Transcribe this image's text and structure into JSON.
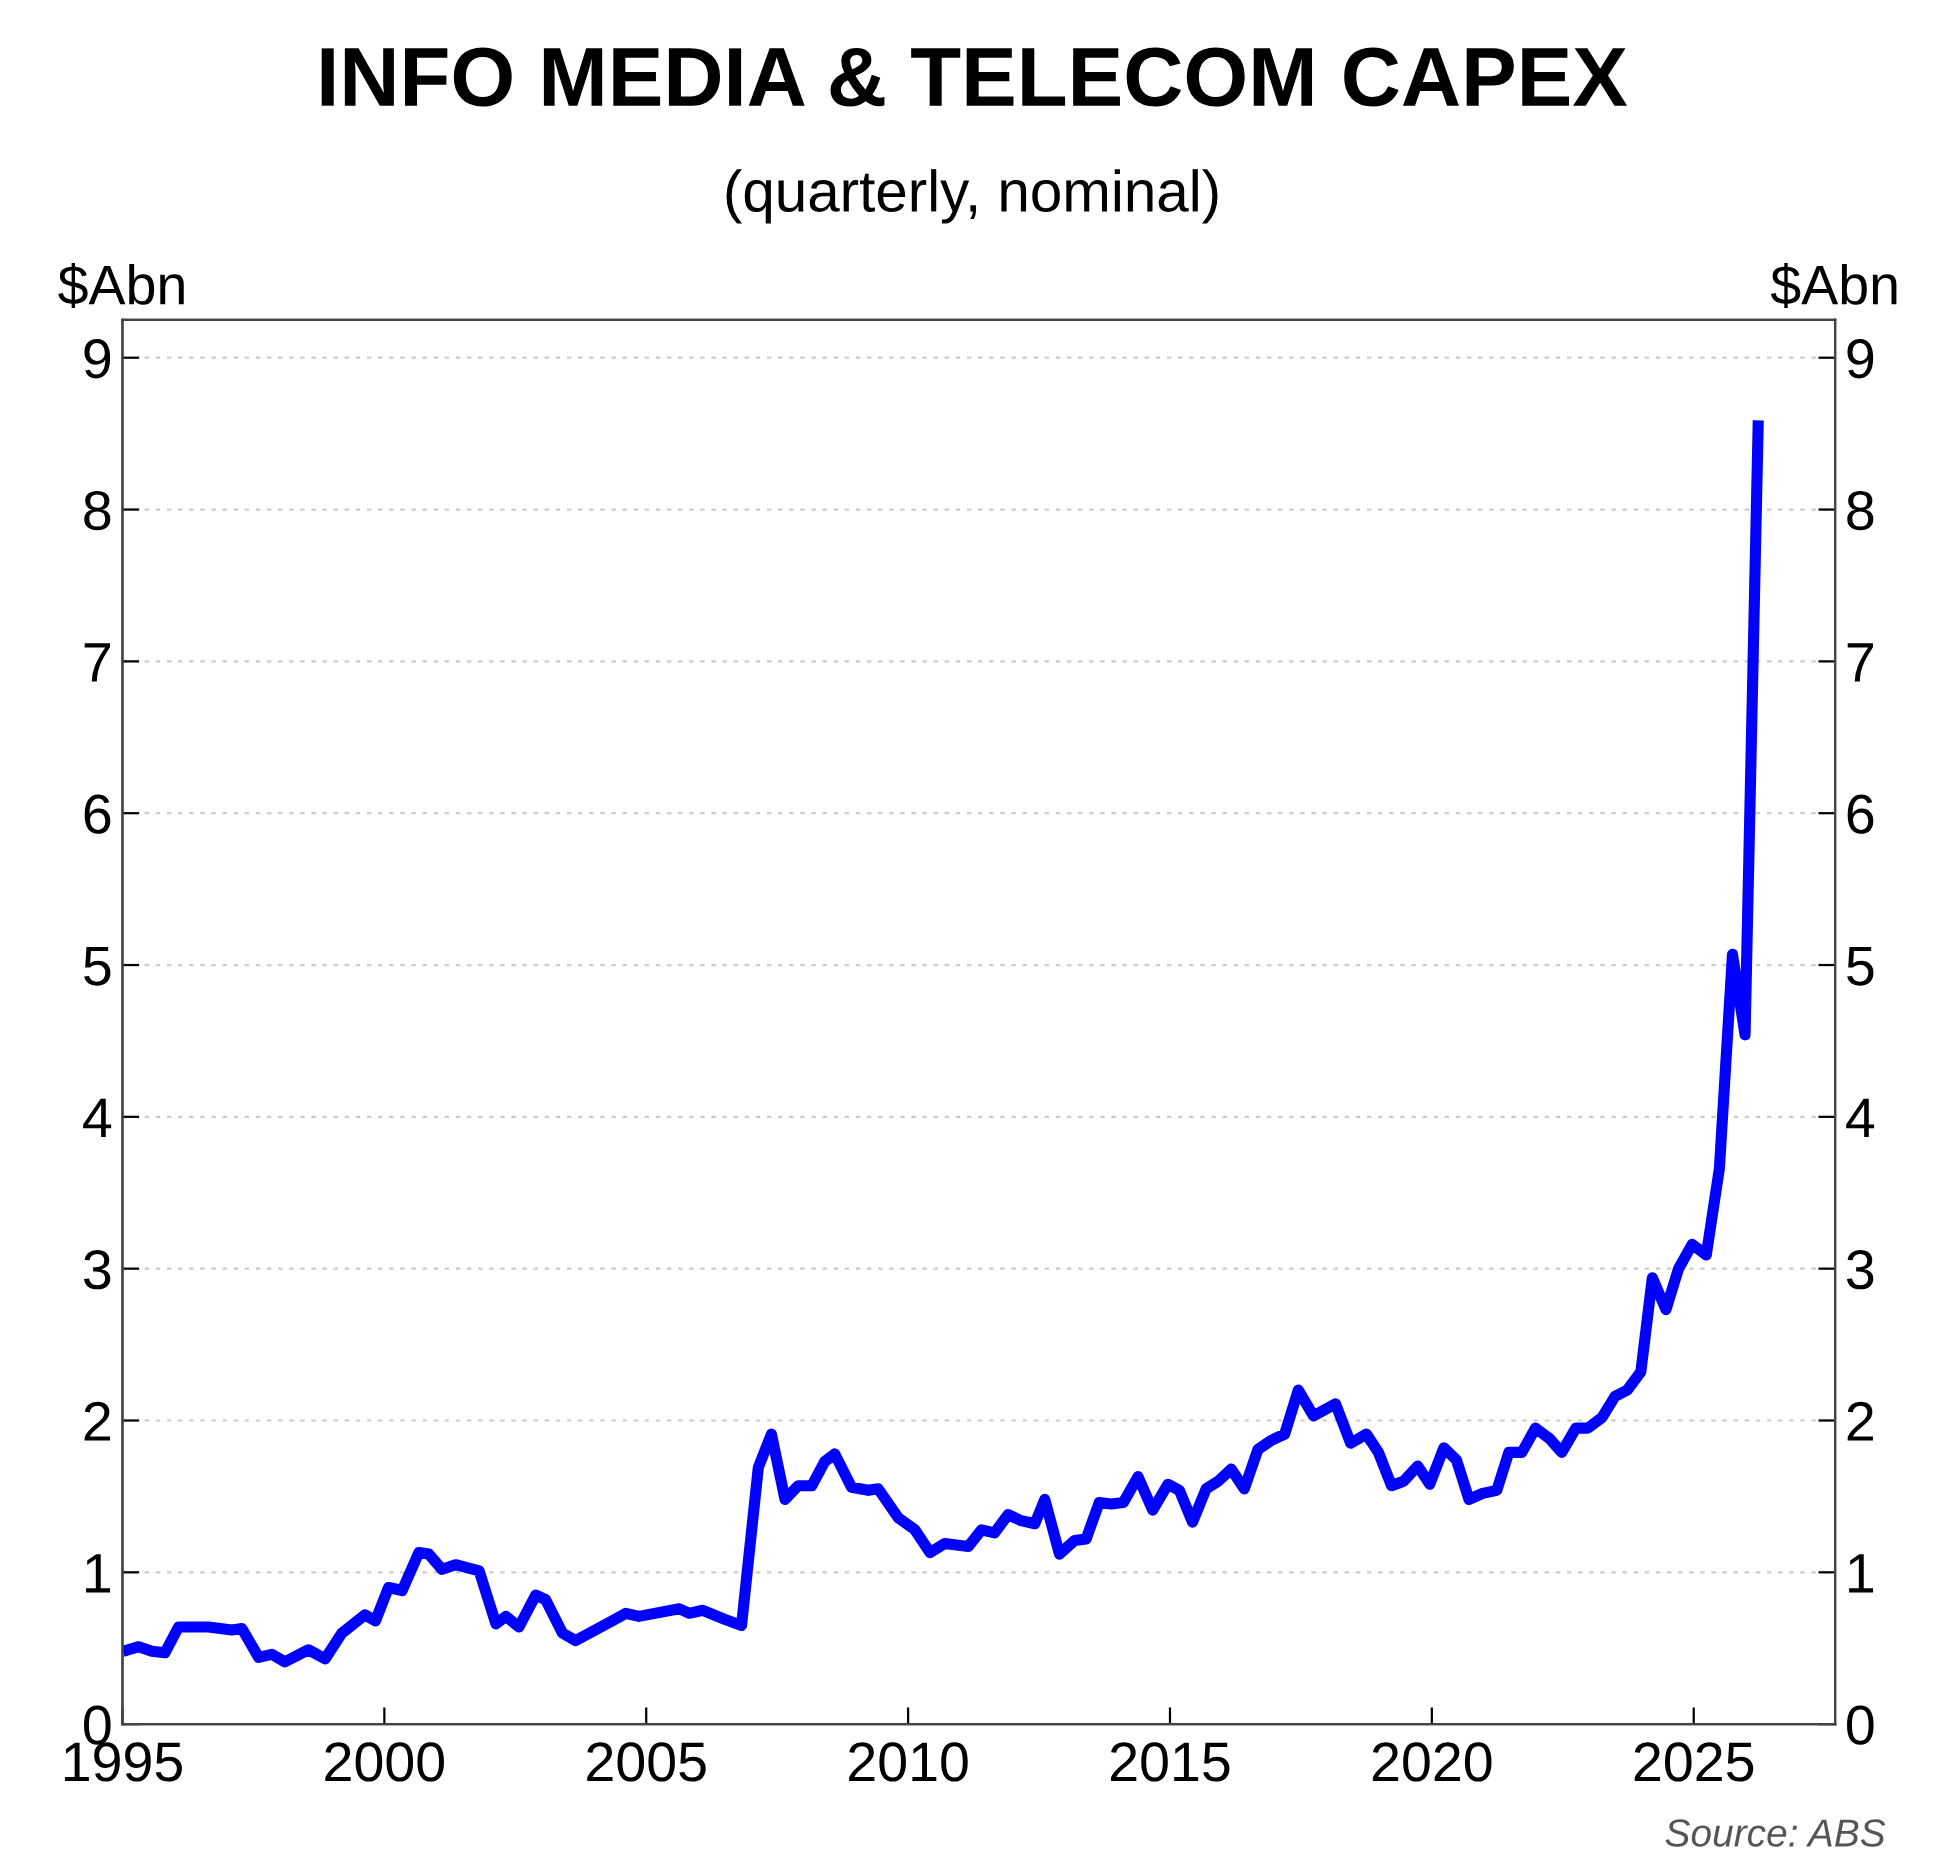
{
  "chart_data": {
    "type": "line",
    "title": "INFO MEDIA & TELECOM CAPEX",
    "subtitle": "(quarterly, nominal)",
    "ylabel": "$Abn",
    "y2label": "$Abn",
    "annotations": [
      "Source: ABS"
    ],
    "x": [
      1995.11,
      1995.31,
      1995.56,
      1995.81,
      1996.07,
      1996.32,
      1996.64,
      1997.09,
      1997.28,
      1997.6,
      1997.85,
      1998.1,
      1998.55,
      1998.87,
      1999.19,
      1999.63,
      1999.83,
      2000.08,
      2000.34,
      2000.66,
      2000.85,
      2001.1,
      2001.36,
      2001.81,
      2002.13,
      2002.32,
      2002.57,
      2002.89,
      2003.08,
      2003.4,
      2003.65,
      2004.35,
      2004.61,
      2004.86,
      2005.63,
      2005.82,
      2006.08,
      2006.5,
      2006.82,
      2007.14,
      2007.39,
      2007.65,
      2007.9,
      2008.16,
      2008.41,
      2008.6,
      2008.92,
      2009.24,
      2009.43,
      2009.81,
      2010.13,
      2010.42,
      2010.7,
      2011.15,
      2011.4,
      2011.65,
      2011.91,
      2012.16,
      2012.42,
      2012.61,
      2012.89,
      2013.18,
      2013.4,
      2013.65,
      2013.88,
      2014.11,
      2014.39,
      2014.67,
      2014.96,
      2015.18,
      2015.43,
      2015.69,
      2015.92,
      2016.17,
      2016.42,
      2016.68,
      2016.94,
      2017.19,
      2017.45,
      2017.74,
      2018.16,
      2018.45,
      2018.75,
      2018.98,
      2019.23,
      2019.46,
      2019.73,
      2019.96,
      2020.23,
      2020.47,
      2020.71,
      2020.97,
      2021.24,
      2021.47,
      2021.72,
      2021.98,
      2022.25,
      2022.48,
      2022.75,
      2022.98,
      2023.25,
      2023.5,
      2023.73,
      2023.99,
      2024.21,
      2024.47,
      2024.71,
      2024.97,
      2025.24,
      2025.49,
      2025.74,
      2025.98,
      2026.23
    ],
    "series": [
      {
        "color": "#0000ff",
        "values": [
          0.49,
          0.51,
          0.48,
          0.47,
          0.64,
          0.64,
          0.64,
          0.62,
          0.63,
          0.44,
          0.46,
          0.41,
          0.49,
          0.43,
          0.6,
          0.72,
          0.68,
          0.9,
          0.88,
          1.13,
          1.12,
          1.02,
          1.05,
          1.01,
          0.66,
          0.71,
          0.64,
          0.85,
          0.82,
          0.6,
          0.55,
          0.68,
          0.73,
          0.71,
          0.76,
          0.73,
          0.75,
          0.69,
          0.65,
          1.69,
          1.91,
          1.48,
          1.57,
          1.57,
          1.73,
          1.78,
          1.56,
          1.54,
          1.55,
          1.36,
          1.28,
          1.13,
          1.19,
          1.17,
          1.28,
          1.26,
          1.38,
          1.34,
          1.32,
          1.48,
          1.12,
          1.21,
          1.22,
          1.46,
          1.45,
          1.46,
          1.63,
          1.41,
          1.58,
          1.54,
          1.33,
          1.55,
          1.6,
          1.68,
          1.55,
          1.81,
          1.87,
          1.91,
          2.2,
          2.03,
          2.11,
          1.85,
          1.91,
          1.79,
          1.57,
          1.6,
          1.7,
          1.58,
          1.82,
          1.74,
          1.48,
          1.52,
          1.54,
          1.79,
          1.79,
          1.95,
          1.88,
          1.79,
          1.95,
          1.95,
          2.02,
          2.16,
          2.2,
          2.32,
          2.94,
          2.73,
          3.0,
          3.16,
          3.09,
          3.66,
          5.07,
          4.54,
          8.55
        ]
      }
    ],
    "xlim": [
      1995,
      2027.7
    ],
    "xticks": [
      1995,
      2000,
      2005,
      2010,
      2015,
      2020,
      2025
    ],
    "ylim": [
      0,
      9.25
    ],
    "yticks": [
      0,
      1,
      2,
      3,
      4,
      5,
      6,
      7,
      8,
      9
    ],
    "y2lim": [
      0,
      9.25
    ],
    "y2ticks": [
      0,
      1,
      2,
      3,
      4,
      5,
      6,
      7,
      8,
      9
    ],
    "grid": "y",
    "legend": false,
    "marker": "none",
    "line_style": "solid"
  }
}
